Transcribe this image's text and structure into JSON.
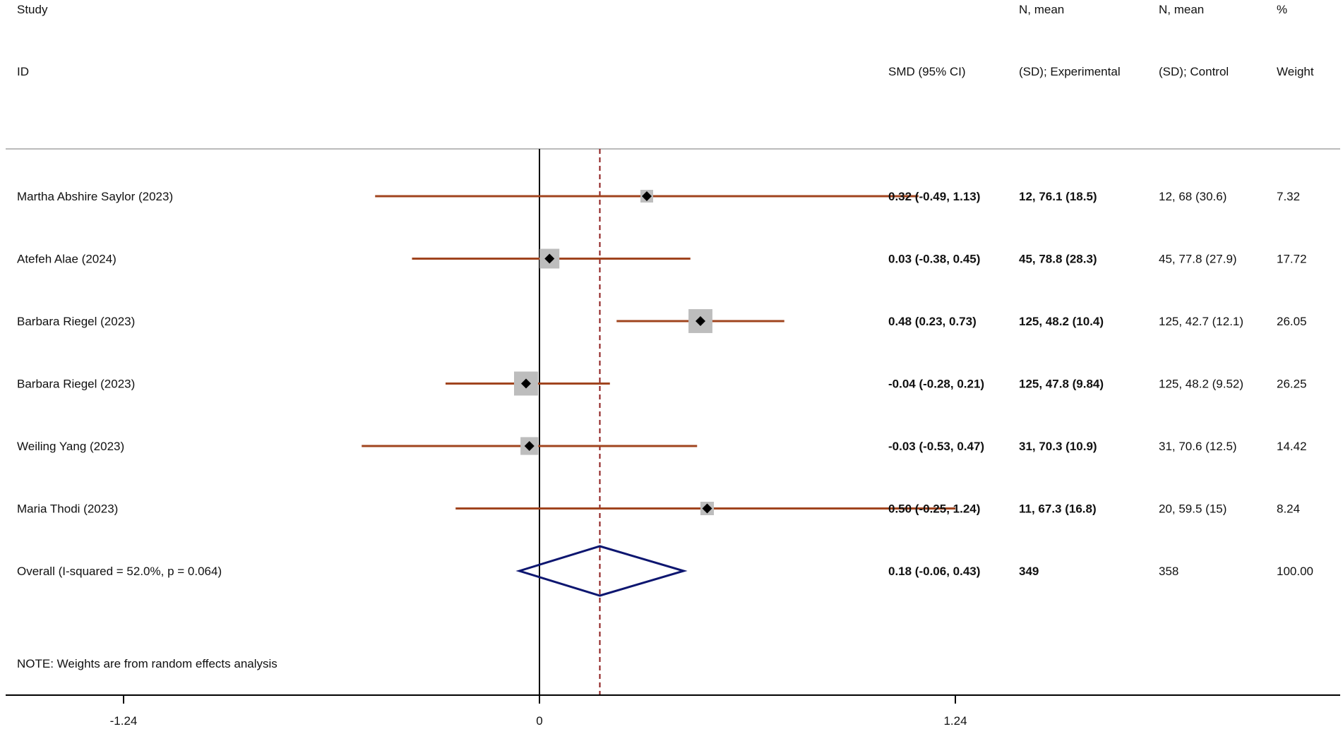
{
  "chart_data": {
    "type": "forest",
    "headers": {
      "study": [
        "Study",
        "ID"
      ],
      "smd": "SMD (95% CI)",
      "experimental": [
        "N, mean",
        "(SD); Experimental"
      ],
      "control": [
        "N, mean",
        "(SD); Control"
      ],
      "weight": [
        "%",
        "Weight"
      ]
    },
    "studies": [
      {
        "label": "Martha Abshire Saylor (2023)",
        "smd": 0.32,
        "lo": -0.49,
        "hi": 1.13,
        "smd_text": "0.32 (-0.49, 1.13)",
        "experimental": "12, 76.1 (18.5)",
        "control": "12, 68 (30.6)",
        "weight": 7.32,
        "weight_text": "7.32"
      },
      {
        "label": "Atefeh Alae (2024)",
        "smd": 0.03,
        "lo": -0.38,
        "hi": 0.45,
        "smd_text": "0.03 (-0.38, 0.45)",
        "experimental": "45, 78.8 (28.3)",
        "control": "45, 77.8 (27.9)",
        "weight": 17.72,
        "weight_text": "17.72"
      },
      {
        "label": "Barbara Riegel (2023)",
        "smd": 0.48,
        "lo": 0.23,
        "hi": 0.73,
        "smd_text": "0.48 (0.23, 0.73)",
        "experimental": "125, 48.2 (10.4)",
        "control": "125, 42.7 (12.1)",
        "weight": 26.05,
        "weight_text": "26.05"
      },
      {
        "label": "Barbara Riegel (2023)",
        "smd": -0.04,
        "lo": -0.28,
        "hi": 0.21,
        "smd_text": "-0.04 (-0.28, 0.21)",
        "experimental": "125, 47.8 (9.84)",
        "control": "125, 48.2 (9.52)",
        "weight": 26.25,
        "weight_text": "26.25"
      },
      {
        "label": "Weiling Yang (2023)",
        "smd": -0.03,
        "lo": -0.53,
        "hi": 0.47,
        "smd_text": "-0.03 (-0.53, 0.47)",
        "experimental": "31, 70.3 (10.9)",
        "control": "31, 70.6 (12.5)",
        "weight": 14.42,
        "weight_text": "14.42"
      },
      {
        "label": "Maria Thodi (2023)",
        "smd": 0.5,
        "lo": -0.25,
        "hi": 1.24,
        "smd_text": "0.50 (-0.25, 1.24)",
        "experimental": "11, 67.3 (16.8)",
        "control": "20, 59.5 (15)",
        "weight": 8.24,
        "weight_text": "8.24"
      }
    ],
    "overall": {
      "label": "Overall  (I-squared = 52.0%, p = 0.064)",
      "smd": 0.18,
      "lo": -0.06,
      "hi": 0.43,
      "smd_text": "0.18 (-0.06, 0.43)",
      "experimental": "349",
      "control": "358",
      "weight_text": "100.00"
    },
    "note": "NOTE: Weights are from random effects analysis",
    "x_ticks": [
      {
        "value": -1.24,
        "label": "-1.24"
      },
      {
        "value": 0,
        "label": "0"
      },
      {
        "value": 1.24,
        "label": "1.24"
      }
    ],
    "xlim": [
      -1.24,
      1.24
    ],
    "null_line": 0,
    "colors": {
      "ci_line": "#A0441E",
      "box": "#BDBDBD",
      "point": "#000000",
      "diamond": "#0D1670",
      "overall_line": "#8B1A1A",
      "axis": "#000000",
      "divider": "#BBBBBB"
    }
  }
}
